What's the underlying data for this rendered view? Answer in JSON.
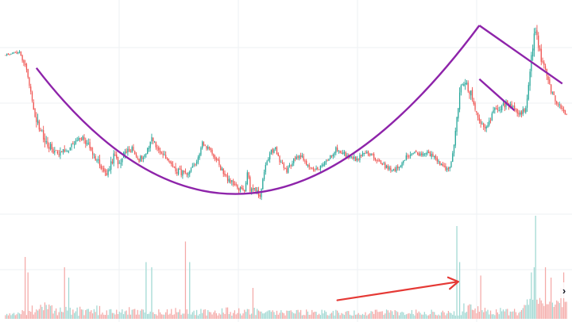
{
  "chart_data": {
    "type": "candlestick",
    "description_pattern": "",
    "colors": {
      "up": "#26a69a",
      "down": "#ef5350",
      "volume_up": "#9fd8d2",
      "volume_down": "#f4a9a7",
      "cup_line": "#8e24aa",
      "handle_line": "#8e24aa",
      "trend_arrow": "#e53935",
      "grid": "#eef0f3"
    },
    "grid": true,
    "legend": "none",
    "price_axis": {
      "min": 0,
      "max": 100,
      "visible_labels": false
    },
    "scroll_button_icon": "chevron-right-icon",
    "price_anchors": [
      [
        0,
        82,
        0.2
      ],
      [
        10,
        83,
        0.4
      ],
      [
        15,
        76,
        0.8
      ],
      [
        18,
        65,
        1.0
      ],
      [
        22,
        52,
        1.3
      ],
      [
        27,
        45,
        1.4
      ],
      [
        35,
        38,
        0.9
      ],
      [
        45,
        40,
        0.9
      ],
      [
        55,
        45,
        0.9
      ],
      [
        65,
        35,
        1.1
      ],
      [
        72,
        28,
        0.8
      ],
      [
        78,
        38,
        1.0
      ],
      [
        80,
        32,
        1.0
      ],
      [
        85,
        38,
        0.9
      ],
      [
        90,
        40,
        0.8
      ],
      [
        95,
        35,
        0.7
      ],
      [
        100,
        38,
        0.6
      ],
      [
        104,
        45,
        0.8
      ],
      [
        108,
        40,
        0.7
      ],
      [
        115,
        35,
        0.8
      ],
      [
        122,
        30,
        0.8
      ],
      [
        130,
        28,
        0.7
      ],
      [
        135,
        33,
        0.7
      ],
      [
        140,
        42,
        0.7
      ],
      [
        145,
        40,
        0.6
      ],
      [
        150,
        35,
        0.6
      ],
      [
        155,
        29,
        0.8
      ],
      [
        160,
        25,
        0.9
      ],
      [
        165,
        22,
        0.8
      ],
      [
        170,
        21,
        0.7
      ],
      [
        172,
        30,
        0.8
      ],
      [
        174,
        22,
        0.8
      ],
      [
        178,
        22,
        0.8
      ],
      [
        181,
        18,
        0.6
      ],
      [
        184,
        30,
        0.7
      ],
      [
        188,
        38,
        0.7
      ],
      [
        192,
        40,
        0.6
      ],
      [
        196,
        33,
        0.6
      ],
      [
        200,
        30,
        0.6
      ],
      [
        205,
        35,
        0.6
      ],
      [
        210,
        37,
        0.6
      ],
      [
        215,
        32,
        0.6
      ],
      [
        220,
        30,
        0.6
      ],
      [
        225,
        32,
        0.6
      ],
      [
        230,
        35,
        0.6
      ],
      [
        235,
        40,
        0.6
      ],
      [
        240,
        38,
        0.6
      ],
      [
        245,
        36,
        0.6
      ],
      [
        250,
        35,
        0.6
      ],
      [
        255,
        38,
        0.6
      ],
      [
        260,
        37,
        0.6
      ],
      [
        265,
        34,
        0.6
      ],
      [
        270,
        32,
        0.6
      ],
      [
        275,
        30,
        0.6
      ],
      [
        280,
        32,
        0.6
      ],
      [
        285,
        36,
        0.6
      ],
      [
        290,
        38,
        0.6
      ],
      [
        295,
        37,
        0.6
      ],
      [
        300,
        38,
        0.6
      ],
      [
        305,
        36,
        0.6
      ],
      [
        310,
        33,
        0.6
      ],
      [
        315,
        30,
        0.6
      ],
      [
        318,
        37,
        0.7
      ],
      [
        321,
        54,
        0.9
      ],
      [
        323,
        65,
        1.1
      ],
      [
        325,
        68,
        1.2
      ],
      [
        327,
        70,
        1.3
      ],
      [
        330,
        66,
        1.2
      ],
      [
        334,
        58,
        1.0
      ],
      [
        337,
        52,
        0.9
      ],
      [
        341,
        50,
        0.8
      ],
      [
        344,
        52,
        0.8
      ],
      [
        348,
        57,
        0.8
      ],
      [
        352,
        58,
        0.8
      ],
      [
        356,
        60,
        0.8
      ],
      [
        360,
        58,
        0.8
      ],
      [
        365,
        56,
        0.8
      ],
      [
        370,
        57,
        0.8
      ],
      [
        374,
        80,
        1.3
      ],
      [
        376,
        92,
        1.4
      ],
      [
        378,
        90,
        1.2
      ],
      [
        381,
        80,
        1.0
      ],
      [
        384,
        74,
        0.9
      ],
      [
        388,
        66,
        0.8
      ],
      [
        392,
        60,
        0.7
      ],
      [
        396,
        58,
        0.6
      ],
      [
        399,
        55,
        0.6
      ]
    ],
    "volume_spikes": [
      [
        14,
        0.6
      ],
      [
        16,
        0.45
      ],
      [
        42,
        0.5
      ],
      [
        45,
        0.4
      ],
      [
        100,
        0.55
      ],
      [
        104,
        0.5
      ],
      [
        128,
        0.75
      ],
      [
        131,
        0.55
      ],
      [
        176,
        0.3
      ],
      [
        321,
        0.9
      ],
      [
        323,
        0.55
      ],
      [
        338,
        0.42
      ],
      [
        374,
        0.45
      ],
      [
        376,
        0.5
      ],
      [
        377,
        1.0
      ],
      [
        384,
        0.5
      ],
      [
        388,
        0.4
      ],
      [
        395,
        0.3
      ],
      [
        397,
        0.45
      ]
    ],
    "overlays": {
      "cup_curve": [
        [
          22,
          76
        ],
        [
          175,
          20
        ],
        [
          337,
          95
        ]
      ],
      "upper_trendline": [
        [
          337,
          95
        ],
        [
          396,
          69
        ]
      ],
      "lower_trendline": [
        [
          337,
          71
        ],
        [
          362,
          57
        ]
      ],
      "trend_arrow": [
        [
          236,
          0.18
        ],
        [
          322,
          0.36
        ]
      ]
    }
  }
}
